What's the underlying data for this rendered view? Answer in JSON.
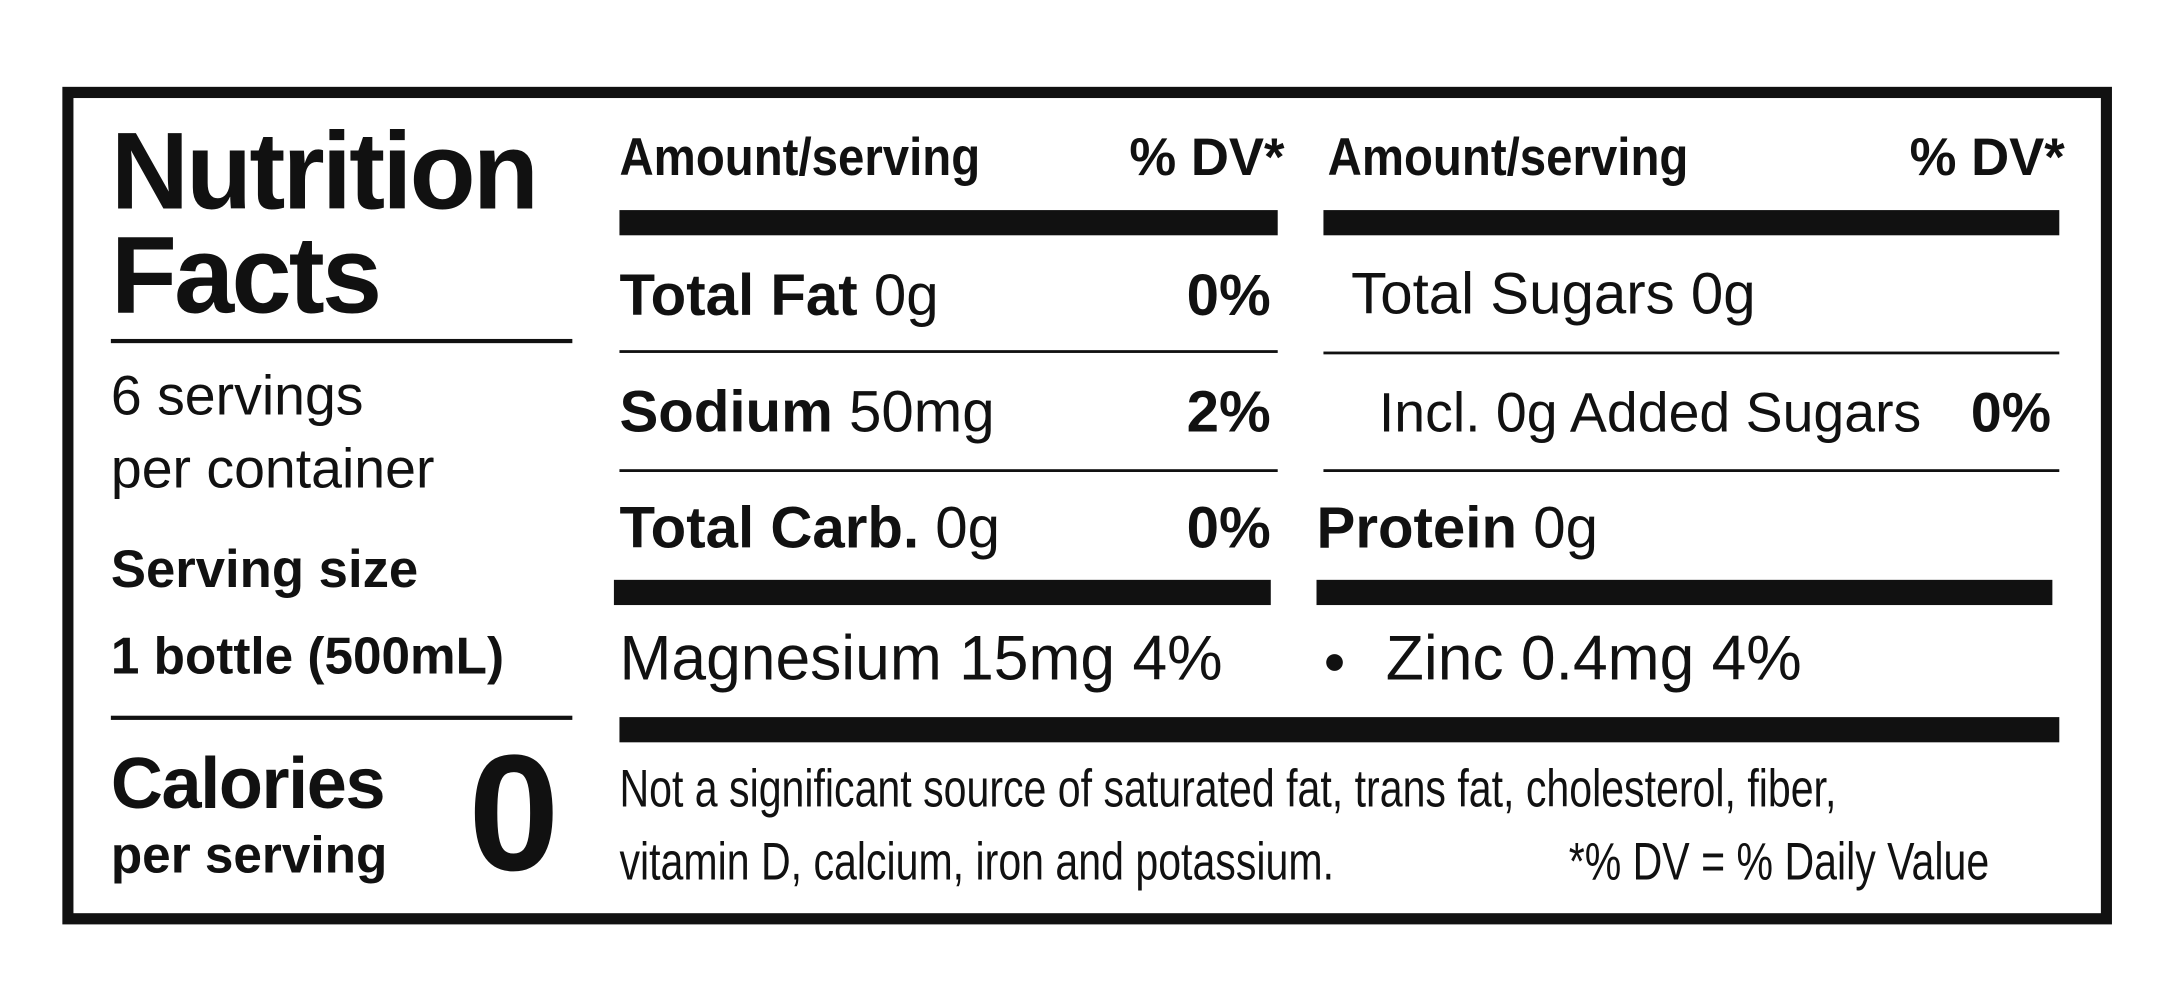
{
  "title_lines": [
    "Nutrition",
    "Facts"
  ],
  "servings_lines": [
    "6 servings",
    "per container"
  ],
  "serving_size_label": "Serving size",
  "serving_size": "1 bottle (500mL)",
  "calories_label": "Calories",
  "calories_sub": "per serving",
  "calories": 0,
  "left_header": {
    "amount": "Amount/serving",
    "dv": "% DV*"
  },
  "right_header": {
    "amount": "Amount/serving",
    "dv": "% DV*"
  },
  "left_rows": [
    {
      "name": "Total Fat",
      "amount": "0g",
      "dv": "0%"
    },
    {
      "name": "Sodium",
      "amount": "50mg",
      "dv": "2%"
    },
    {
      "name": "Total Carb.",
      "amount": "0g",
      "dv": "0%"
    }
  ],
  "right_rows": [
    {
      "name": "Total Sugars 0g"
    },
    {
      "name": "Incl. 0g Added Sugars",
      "dv": "0%"
    },
    {
      "name": "Protein",
      "amount": "0g"
    }
  ],
  "vitamins": [
    "Magnesium 15mg 4%",
    "Zinc 0.4mg 4%"
  ],
  "footnote_lines": [
    "Not a significant source of saturated fat, trans fat, cholesterol, fiber,",
    "vitamin D, calcium, iron and potassium."
  ],
  "dv_note": "*% DV = % Daily Value"
}
